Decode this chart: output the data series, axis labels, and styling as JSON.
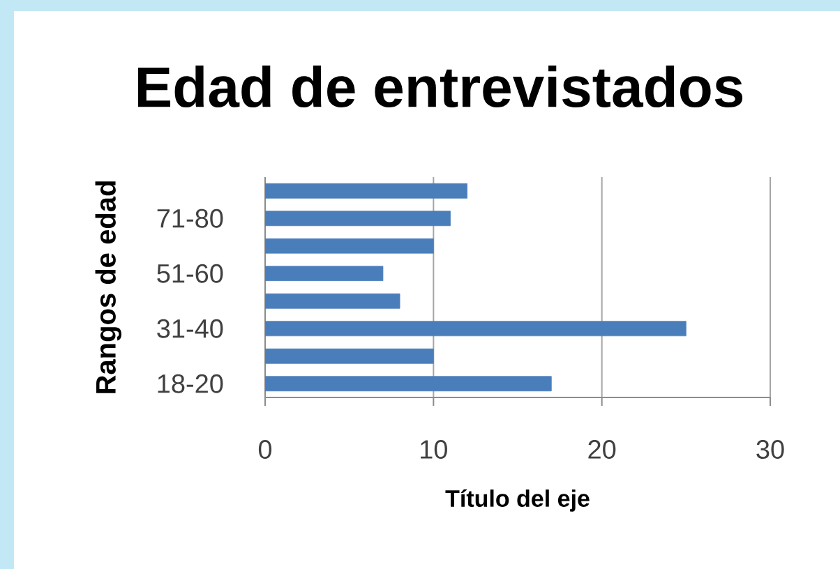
{
  "chart_data": {
    "type": "bar",
    "orientation": "horizontal",
    "title": "Edad de entrevistados",
    "xlabel": "Título del eje",
    "ylabel": "Rangos de edad",
    "categories": [
      null,
      "71-80",
      null,
      "51-60",
      null,
      "31-40",
      null,
      "18-20"
    ],
    "values": [
      12,
      11,
      10,
      7,
      8,
      25,
      10,
      17
    ],
    "color": "#4a7ebb",
    "xlim": [
      0,
      30
    ],
    "xticks": [
      0,
      10,
      20,
      30
    ],
    "grid": "x"
  }
}
